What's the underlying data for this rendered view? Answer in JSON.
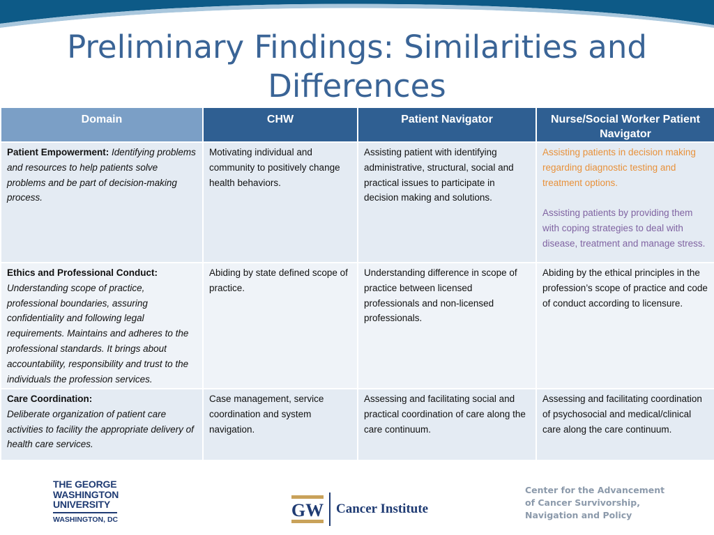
{
  "slide": {
    "title": "Preliminary Findings: Similarities and Differences"
  },
  "table": {
    "headers": [
      "Domain",
      "CHW",
      "Patient Navigator",
      "Nurse/Social Worker Patient Navigator"
    ],
    "rows": [
      {
        "domain_name": "Patient Empowerment:",
        "domain_desc": "Identifying problems and resources to help patients solve problems and be part of decision-making process.",
        "chw": "Motivating individual and community to positively change health behaviors.",
        "patient_navigator": "Assisting patient with identifying administrative, structural, social and practical issues to participate in decision making and solutions.",
        "nurse_sw_navigator": [
          {
            "text": "Assisting patients in decision making regarding diagnostic testing and treatment options.",
            "color": "#e8913a"
          },
          {
            "text": "Assisting patients by providing them with coping strategies to deal with disease, treatment and manage stress.",
            "color": "#8064a2"
          }
        ]
      },
      {
        "domain_name": "Ethics and Professional Conduct:",
        "domain_desc": "Understanding scope of practice, professional boundaries, assuring confidentiality and following legal requirements. Maintains and adheres to the professional standards. It brings about accountability, responsibility and trust to the individuals the profession services.",
        "chw": "Abiding by state defined scope of practice.",
        "patient_navigator": "Understanding difference in scope of practice between licensed professionals and non-licensed professionals.",
        "nurse_sw_navigator": "Abiding by the ethical principles in the profession’s scope of practice and code of conduct according to licensure."
      },
      {
        "domain_name": "Care Coordination:",
        "domain_desc": "Deliberate organization of patient care activities to facility the appropriate delivery of health care services.",
        "chw": "Case management, service coordination and system navigation.",
        "patient_navigator": "Assessing and facilitating social and practical coordination of care along the care continuum.",
        "nurse_sw_navigator": "Assessing and facilitating coordination of psychosocial and medical/clinical care along the care continuum."
      }
    ]
  },
  "footer": {
    "gw_logo": {
      "lines": [
        "THE GEORGE",
        "WASHINGTON",
        "UNIVERSITY"
      ],
      "city": "WASHINGTON, DC"
    },
    "cancer_institute": {
      "mark": "GW",
      "name": "Cancer Institute"
    },
    "center": {
      "lines": [
        "Center for the Advancement",
        "of Cancer Survivorship,",
        "Navigation and Policy"
      ]
    }
  },
  "colors": {
    "title": "#3a6496",
    "header_bg": "#2f5f92",
    "domain_header_bg": "#7b9fc6",
    "row_bg_a": "#e4ebf3",
    "row_bg_b": "#eff3f8",
    "orange_text": "#e8913a",
    "purple_text": "#8064a2",
    "gw_navy": "#1f3b73"
  }
}
